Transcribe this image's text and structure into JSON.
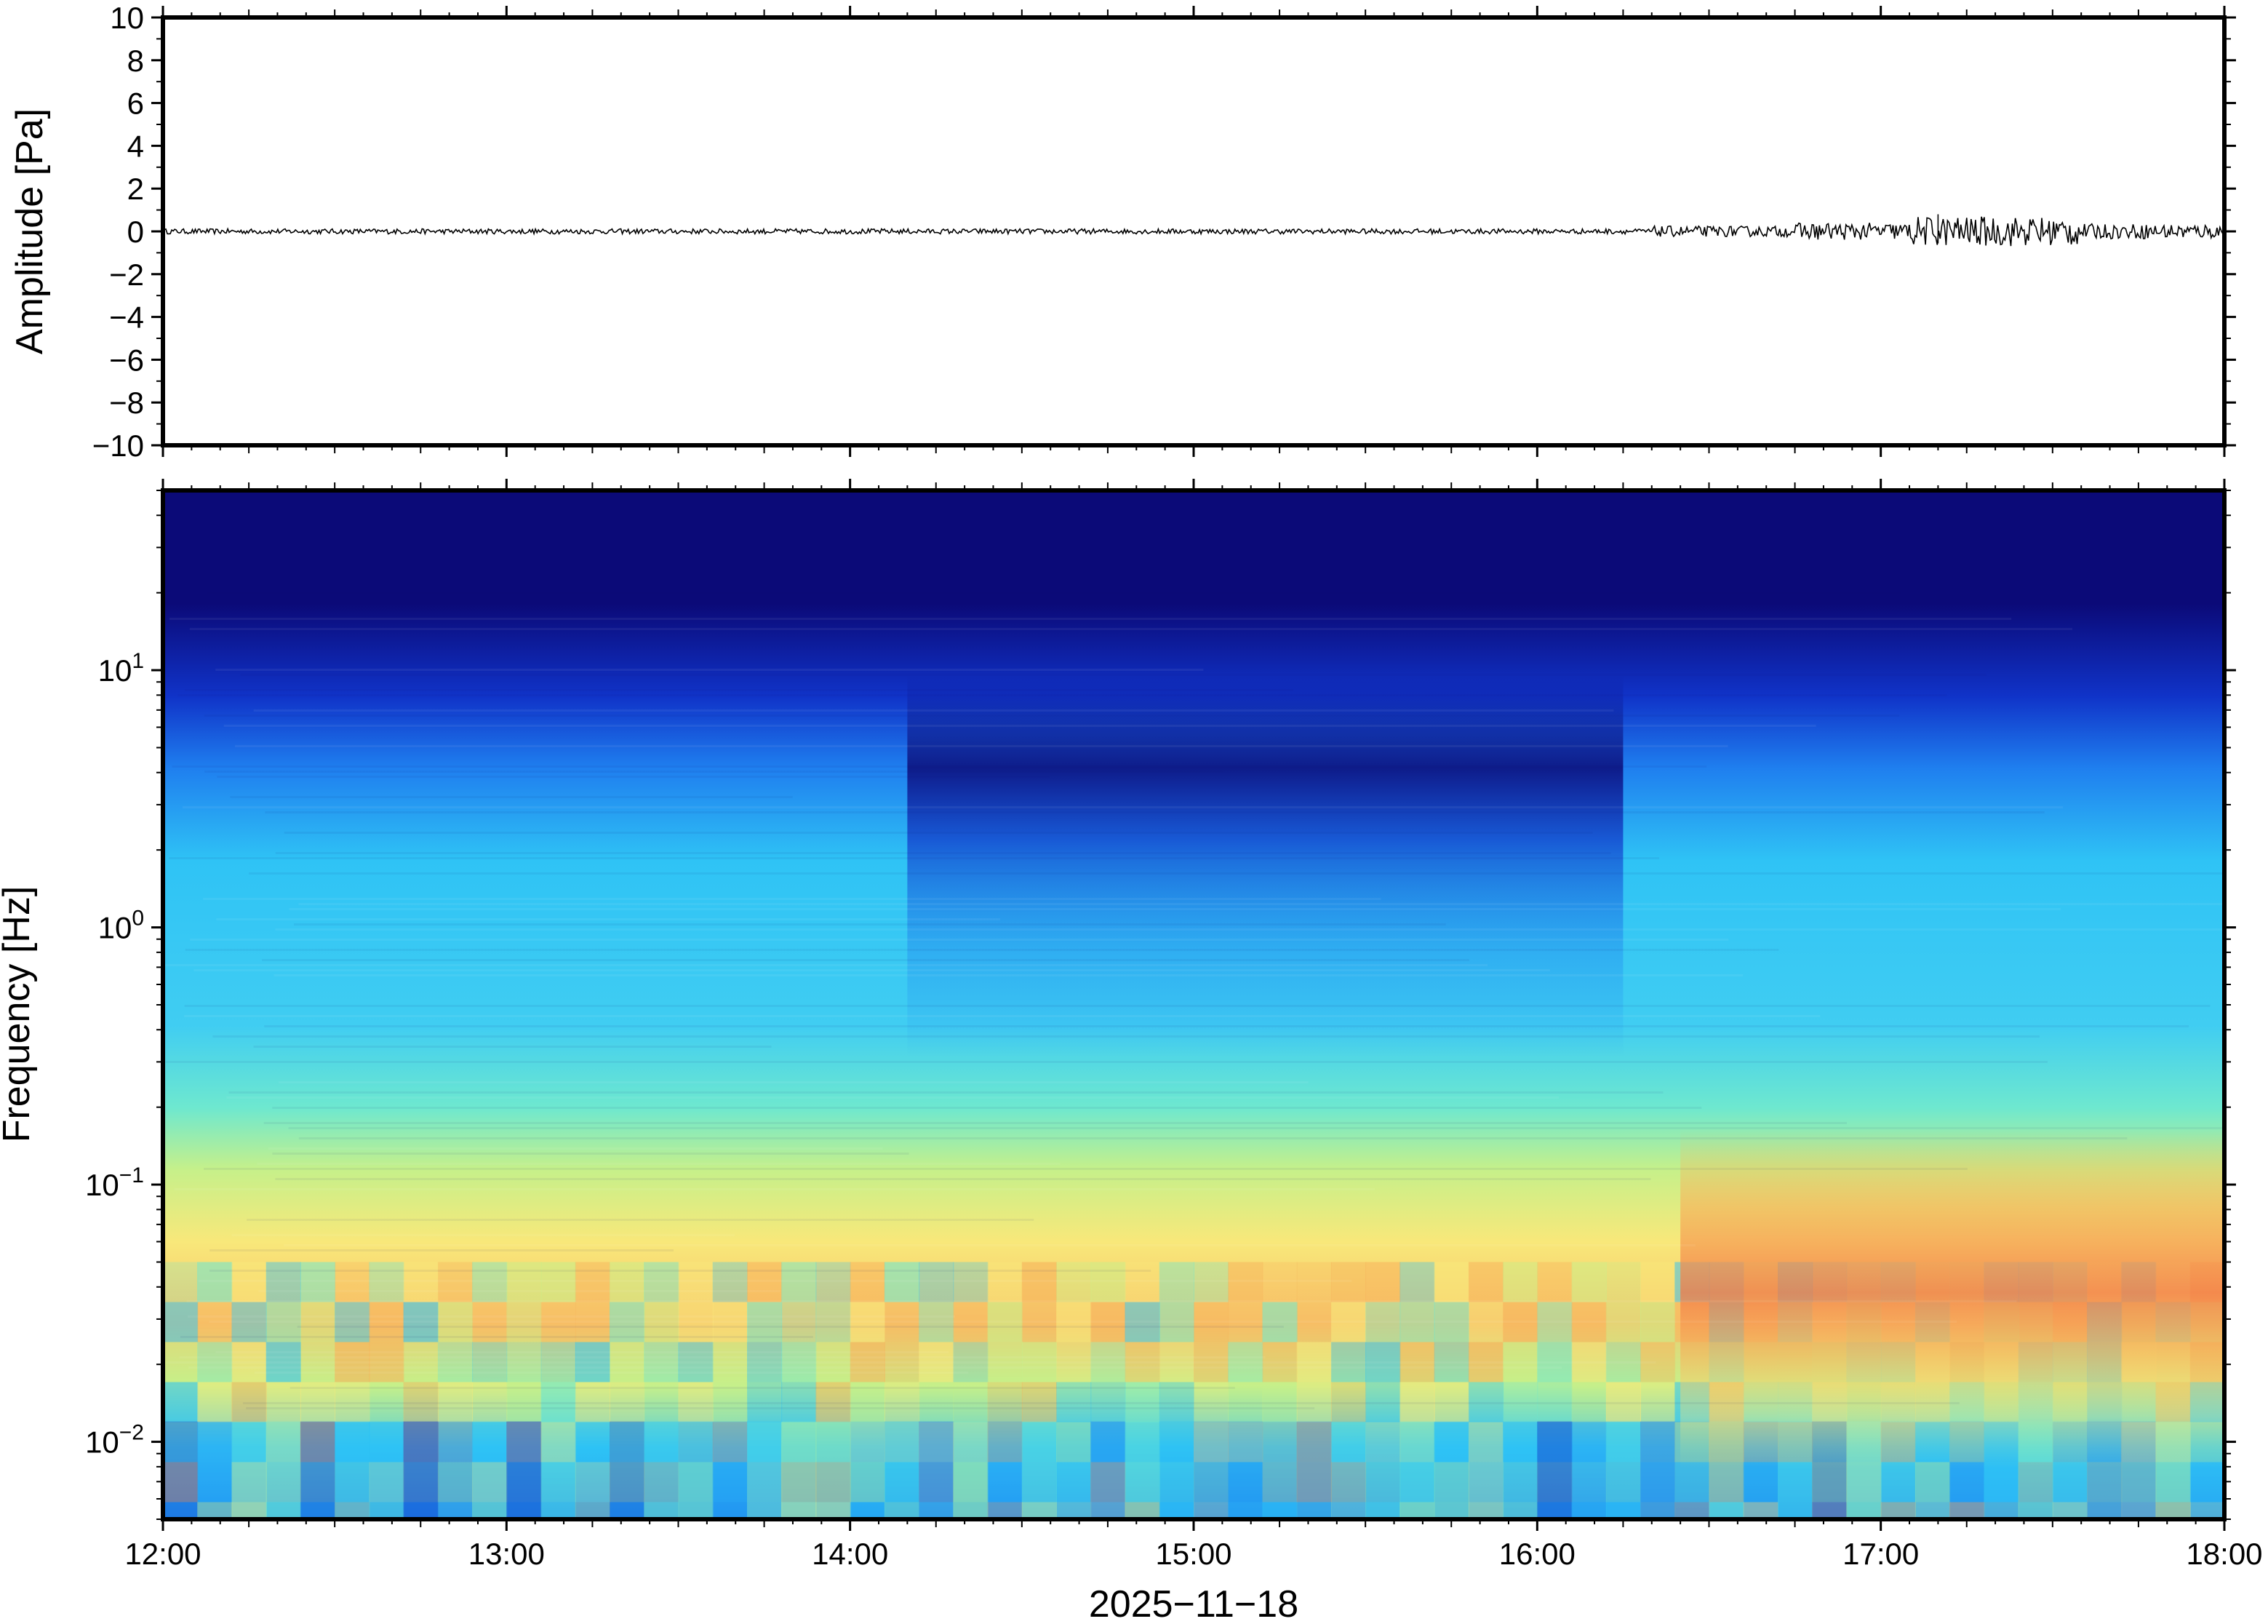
{
  "chart_data": [
    {
      "type": "line",
      "panel": "waveform",
      "ylabel": "Amplitude [Pa]",
      "ylim": [
        -10,
        10
      ],
      "yticks": [
        "10",
        "8",
        "6",
        "4",
        "2",
        "0",
        "−2",
        "−4",
        "−6",
        "−8",
        "−10"
      ],
      "ytick_values": [
        10,
        8,
        6,
        4,
        2,
        0,
        -2,
        -4,
        -6,
        -8,
        -10
      ],
      "xlim": [
        "12:00",
        "18:00"
      ],
      "series": [
        {
          "color": "#000000",
          "segments": [
            {
              "from": "12:00",
              "to": "16:20",
              "amplitude": 0.12
            },
            {
              "from": "16:20",
              "to": "16:45",
              "amplitude": 0.25
            },
            {
              "from": "16:45",
              "to": "17:05",
              "amplitude": 0.4
            },
            {
              "from": "17:05",
              "to": "17:35",
              "amplitude": 0.7
            },
            {
              "from": "17:35",
              "to": "18:00",
              "amplitude": 0.35
            }
          ],
          "peak": {
            "time": "17:10",
            "value": 0.8
          }
        }
      ]
    },
    {
      "type": "heatmap",
      "panel": "spectrogram",
      "ylabel": "Frequency [Hz]",
      "yscale": "log",
      "ylim": [
        0.005,
        50
      ],
      "yticks": [
        {
          "base": "10",
          "exp": "1",
          "value": 10
        },
        {
          "base": "10",
          "exp": "0",
          "value": 1
        },
        {
          "base": "10",
          "exp": "−1",
          "value": 0.1
        },
        {
          "base": "10",
          "exp": "−2",
          "value": 0.01
        }
      ],
      "xlabel": "2025−11−18",
      "xticks": [
        "12:00",
        "13:00",
        "14:00",
        "15:00",
        "16:00",
        "17:00",
        "18:00"
      ],
      "colormap": [
        "#0b0a78",
        "#1033c8",
        "#1f7fef",
        "#2fc3f5",
        "#6ee8cf",
        "#c6f08a",
        "#f8e87a",
        "#f7b25a",
        "#f37846"
      ],
      "quiet_band": {
        "from": "14:10",
        "to": "16:15",
        "upper_edge_hz": 4
      },
      "energetic_band": {
        "from": "16:25",
        "to": "18:00",
        "freq_hz": [
          0.02,
          0.12
        ]
      }
    }
  ]
}
